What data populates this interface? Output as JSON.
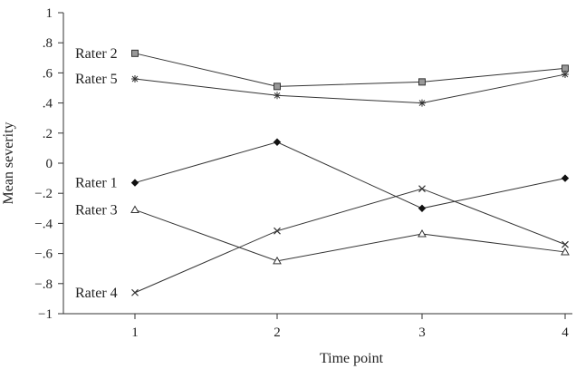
{
  "chart_data": {
    "type": "line",
    "xlabel": "Time point",
    "ylabel": "Mean severity",
    "x": [
      1,
      2,
      3,
      4
    ],
    "x_tick_labels": [
      "1",
      "2",
      "3",
      "4"
    ],
    "ylim": [
      -1,
      1
    ],
    "y_ticks": [
      1,
      0.8,
      0.6,
      0.4,
      0.2,
      0,
      -0.2,
      -0.4,
      -0.6,
      -0.8,
      -1
    ],
    "y_tick_labels": [
      "1",
      ".8",
      ".6",
      ".4",
      ".2",
      "0",
      "−.2",
      "−.4",
      "−.6",
      "−.8",
      "−1"
    ],
    "grid": false,
    "legend": "inline labels at left",
    "series": [
      {
        "name": "Rater 2",
        "marker": "square",
        "values": [
          0.73,
          0.51,
          0.54,
          0.63
        ]
      },
      {
        "name": "Rater 5",
        "marker": "asterisk",
        "values": [
          0.56,
          0.45,
          0.4,
          0.59
        ]
      },
      {
        "name": "Rater 1",
        "marker": "diamond",
        "values": [
          -0.13,
          0.14,
          -0.3,
          -0.1
        ]
      },
      {
        "name": "Rater 3",
        "marker": "triangle",
        "values": [
          -0.31,
          -0.65,
          -0.47,
          -0.59
        ]
      },
      {
        "name": "Rater 4",
        "marker": "x",
        "values": [
          -0.86,
          -0.45,
          -0.17,
          -0.54
        ]
      }
    ]
  }
}
